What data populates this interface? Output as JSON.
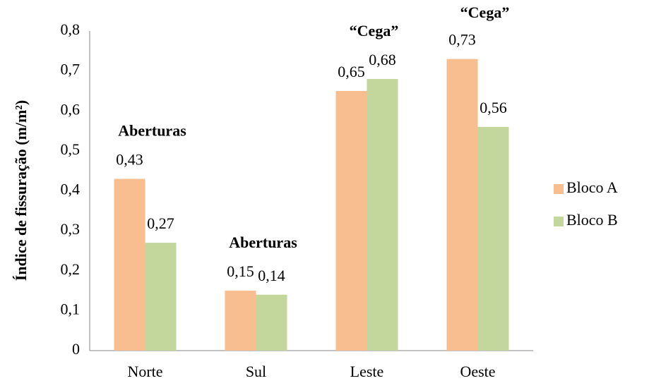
{
  "chart_data": {
    "type": "bar",
    "y_label": "Índice de fissuração (m/m²)",
    "categories": [
      "Norte",
      "Sul",
      "Leste",
      "Oeste"
    ],
    "series": [
      {
        "name": "Bloco A",
        "color": "#f9be8f",
        "values": [
          0.43,
          0.15,
          0.65,
          0.73
        ],
        "value_labels": [
          "0,43",
          "0,15",
          "0,65",
          "0,73"
        ]
      },
      {
        "name": "Bloco B",
        "color": "#c3d69b",
        "values": [
          0.27,
          0.14,
          0.68,
          0.56
        ],
        "value_labels": [
          "0,27",
          "0,14",
          "0,68",
          "0,56"
        ]
      }
    ],
    "annotations": [
      "Aberturas",
      "Aberturas",
      "“Cega”",
      "“Cega”"
    ],
    "ylim": [
      0,
      0.8
    ],
    "yticks": [
      0,
      {
        "value": 0.1,
        "label": "0,1"
      },
      {
        "value": 0.2,
        "label": "0,2"
      },
      {
        "value": 0.3,
        "label": "0,3"
      },
      {
        "value": 0.4,
        "label": "0,4"
      },
      {
        "value": 0.5,
        "label": "0,5"
      },
      {
        "value": 0.6,
        "label": "0,6"
      },
      {
        "value": 0.7,
        "label": "0,7"
      },
      {
        "value": 0.8,
        "label": "0,8"
      }
    ],
    "grid": false,
    "legend": "right"
  }
}
